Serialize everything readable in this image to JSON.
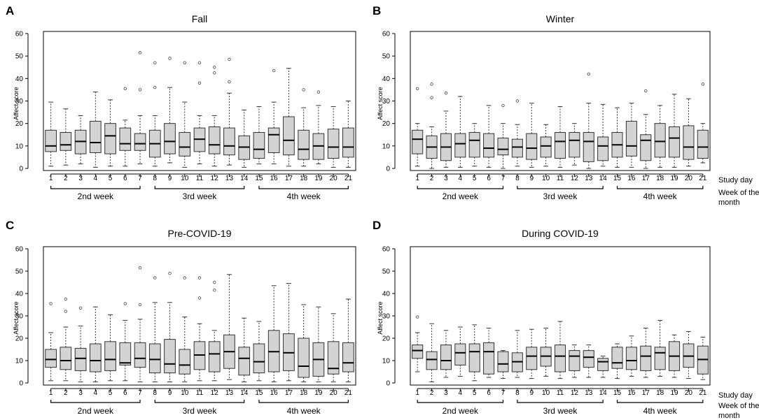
{
  "labels": {
    "study_day": "Study day",
    "week_of_month_line1": "Week of the",
    "week_of_month_line2": "month"
  },
  "panel_letters": [
    "A",
    "B",
    "C",
    "D"
  ],
  "chart_data": [
    {
      "type": "boxplot",
      "panel": "A",
      "title": "Fall",
      "ylabel": "Affect score",
      "ylim": [
        0,
        60
      ],
      "yticks": [
        0,
        10,
        20,
        30,
        40,
        50,
        60
      ],
      "categories": [
        "1",
        "2",
        "3",
        "4",
        "5",
        "6",
        "7",
        "8",
        "9",
        "10",
        "11",
        "12",
        "13",
        "14",
        "15",
        "16",
        "17",
        "18",
        "19",
        "20",
        "21"
      ],
      "week_groups": [
        {
          "label": "2nd week",
          "from": 1,
          "to": 7
        },
        {
          "label": "3rd week",
          "from": 8,
          "to": 14
        },
        {
          "label": "4th week",
          "from": 15,
          "to": 21
        }
      ],
      "boxes": [
        {
          "day": "1",
          "wlo": 1,
          "q1": 7.5,
          "med": 10,
          "q3": 17,
          "whi": 29.5,
          "out": []
        },
        {
          "day": "2",
          "wlo": 1.5,
          "q1": 8,
          "med": 10.5,
          "q3": 16,
          "whi": 26.5,
          "out": []
        },
        {
          "day": "3",
          "wlo": 2,
          "q1": 6.5,
          "med": 12,
          "q3": 17,
          "whi": 23.5,
          "out": []
        },
        {
          "day": "4",
          "wlo": 0.5,
          "q1": 7,
          "med": 11.5,
          "q3": 21,
          "whi": 34,
          "out": []
        },
        {
          "day": "5",
          "wlo": 1,
          "q1": 6.5,
          "med": 14.5,
          "q3": 20,
          "whi": 30.5,
          "out": []
        },
        {
          "day": "6",
          "wlo": 1,
          "q1": 8,
          "med": 11,
          "q3": 18,
          "whi": 21.5,
          "out": [
            35.5
          ]
        },
        {
          "day": "7",
          "wlo": 2,
          "q1": 8,
          "med": 11,
          "q3": 15.5,
          "whi": 23.5,
          "out": [
            35,
            51.5
          ]
        },
        {
          "day": "8",
          "wlo": 1,
          "q1": 5,
          "med": 11,
          "q3": 17,
          "whi": 23.5,
          "out": [
            36,
            47
          ]
        },
        {
          "day": "9",
          "wlo": 2.5,
          "q1": 6.5,
          "med": 12,
          "q3": 20,
          "whi": 36,
          "out": [
            49
          ]
        },
        {
          "day": "10",
          "wlo": 0.5,
          "q1": 5.5,
          "med": 9.5,
          "q3": 16,
          "whi": 29.5,
          "out": [
            47
          ]
        },
        {
          "day": "11",
          "wlo": 2,
          "q1": 7.5,
          "med": 13,
          "q3": 18,
          "whi": 23.5,
          "out": [
            38,
            47
          ]
        },
        {
          "day": "12",
          "wlo": 1,
          "q1": 6.5,
          "med": 10.5,
          "q3": 18.5,
          "whi": 23.5,
          "out": [
            42.5,
            45
          ]
        },
        {
          "day": "13",
          "wlo": 1.5,
          "q1": 6,
          "med": 10,
          "q3": 18,
          "whi": 33.5,
          "out": [
            38.5,
            48.5
          ]
        },
        {
          "day": "14",
          "wlo": 0.5,
          "q1": 4,
          "med": 9.5,
          "q3": 14.5,
          "whi": 26,
          "out": []
        },
        {
          "day": "15",
          "wlo": 2,
          "q1": 4.5,
          "med": 8.5,
          "q3": 16,
          "whi": 27.5,
          "out": []
        },
        {
          "day": "16",
          "wlo": 2,
          "q1": 7,
          "med": 15,
          "q3": 18,
          "whi": 29.5,
          "out": [
            43.5
          ]
        },
        {
          "day": "17",
          "wlo": 1,
          "q1": 6,
          "med": 12.5,
          "q3": 23,
          "whi": 44.5,
          "out": []
        },
        {
          "day": "18",
          "wlo": 1,
          "q1": 4,
          "med": 8.5,
          "q3": 17,
          "whi": 27,
          "out": [
            35
          ]
        },
        {
          "day": "19",
          "wlo": 2,
          "q1": 4,
          "med": 10,
          "q3": 15.5,
          "whi": 28,
          "out": [
            34
          ]
        },
        {
          "day": "20",
          "wlo": 0.5,
          "q1": 4.5,
          "med": 9.5,
          "q3": 17.5,
          "whi": 27.5,
          "out": []
        },
        {
          "day": "21",
          "wlo": 0.5,
          "q1": 5,
          "med": 9.5,
          "q3": 18,
          "whi": 30,
          "out": []
        }
      ]
    },
    {
      "type": "boxplot",
      "panel": "B",
      "title": "Winter",
      "ylabel": "Affect score",
      "ylim": [
        0,
        60
      ],
      "yticks": [
        0,
        10,
        20,
        30,
        40,
        50,
        60
      ],
      "categories": [
        "1",
        "2",
        "3",
        "4",
        "5",
        "6",
        "7",
        "8",
        "9",
        "10",
        "11",
        "12",
        "13",
        "14",
        "15",
        "16",
        "17",
        "18",
        "19",
        "20",
        "21"
      ],
      "week_groups": [
        {
          "label": "2nd week",
          "from": 1,
          "to": 7
        },
        {
          "label": "3rd week",
          "from": 8,
          "to": 14
        },
        {
          "label": "4th week",
          "from": 15,
          "to": 21
        }
      ],
      "boxes": [
        {
          "day": "1",
          "wlo": 1,
          "q1": 6.5,
          "med": 13,
          "q3": 17,
          "whi": 20,
          "out": [
            35.5
          ]
        },
        {
          "day": "2",
          "wlo": 0,
          "q1": 4.5,
          "med": 9.5,
          "q3": 14.5,
          "whi": 18.5,
          "out": [
            31.5,
            37.5
          ]
        },
        {
          "day": "3",
          "wlo": 0.5,
          "q1": 3.5,
          "med": 9.5,
          "q3": 15.5,
          "whi": 25.5,
          "out": [
            33.5
          ]
        },
        {
          "day": "4",
          "wlo": 0.5,
          "q1": 5,
          "med": 11,
          "q3": 15.5,
          "whi": 32,
          "out": []
        },
        {
          "day": "5",
          "wlo": 1,
          "q1": 5,
          "med": 12.5,
          "q3": 16,
          "whi": 20,
          "out": []
        },
        {
          "day": "6",
          "wlo": 0.5,
          "q1": 5,
          "med": 9,
          "q3": 15.5,
          "whi": 28,
          "out": []
        },
        {
          "day": "7",
          "wlo": 0,
          "q1": 6,
          "med": 8.5,
          "q3": 13.5,
          "whi": 20,
          "out": [
            28
          ]
        },
        {
          "day": "8",
          "wlo": 1,
          "q1": 5,
          "med": 9.5,
          "q3": 13,
          "whi": 19.5,
          "out": [
            30
          ]
        },
        {
          "day": "9",
          "wlo": 0.5,
          "q1": 4,
          "med": 9,
          "q3": 15.5,
          "whi": 29,
          "out": []
        },
        {
          "day": "10",
          "wlo": 1,
          "q1": 5,
          "med": 10,
          "q3": 14,
          "whi": 19.5,
          "out": []
        },
        {
          "day": "11",
          "wlo": 0.5,
          "q1": 4.5,
          "med": 12,
          "q3": 16,
          "whi": 27.5,
          "out": []
        },
        {
          "day": "12",
          "wlo": 1.5,
          "q1": 5,
          "med": 12.5,
          "q3": 16,
          "whi": 20,
          "out": []
        },
        {
          "day": "13",
          "wlo": 0,
          "q1": 3,
          "med": 12,
          "q3": 16,
          "whi": 29,
          "out": [
            42
          ]
        },
        {
          "day": "14",
          "wlo": 1,
          "q1": 3.5,
          "med": 10,
          "q3": 14,
          "whi": 28.5,
          "out": []
        },
        {
          "day": "15",
          "wlo": 0.5,
          "q1": 5,
          "med": 10.5,
          "q3": 16,
          "whi": 27,
          "out": []
        },
        {
          "day": "16",
          "wlo": 0.5,
          "q1": 5.5,
          "med": 10,
          "q3": 21,
          "whi": 29,
          "out": []
        },
        {
          "day": "17",
          "wlo": 0,
          "q1": 3.5,
          "med": 12.5,
          "q3": 15,
          "whi": 24,
          "out": [
            34.5
          ]
        },
        {
          "day": "18",
          "wlo": 0.5,
          "q1": 5,
          "med": 12,
          "q3": 20,
          "whi": 28,
          "out": []
        },
        {
          "day": "19",
          "wlo": 0.5,
          "q1": 5,
          "med": 13.5,
          "q3": 18.5,
          "whi": 33,
          "out": []
        },
        {
          "day": "20",
          "wlo": 1,
          "q1": 4,
          "med": 9.5,
          "q3": 19,
          "whi": 31,
          "out": []
        },
        {
          "day": "21",
          "wlo": 2.5,
          "q1": 4.5,
          "med": 9.5,
          "q3": 17,
          "whi": 20,
          "out": [
            37.5
          ]
        }
      ]
    },
    {
      "type": "boxplot",
      "panel": "C",
      "title": "Pre-COVID-19",
      "ylabel": "Affect score",
      "ylim": [
        0,
        60
      ],
      "yticks": [
        0,
        10,
        20,
        30,
        40,
        50,
        60
      ],
      "categories": [
        "1",
        "2",
        "3",
        "4",
        "5",
        "6",
        "7",
        "8",
        "9",
        "10",
        "11",
        "12",
        "13",
        "14",
        "15",
        "16",
        "17",
        "18",
        "19",
        "20",
        "21"
      ],
      "week_groups": [
        {
          "label": "2nd week",
          "from": 1,
          "to": 7
        },
        {
          "label": "3rd week",
          "from": 8,
          "to": 14
        },
        {
          "label": "4th week",
          "from": 15,
          "to": 21
        }
      ],
      "boxes": [
        {
          "day": "1",
          "wlo": 1,
          "q1": 7,
          "med": 10.5,
          "q3": 15,
          "whi": 22.5,
          "out": [
            35.5
          ]
        },
        {
          "day": "2",
          "wlo": 1,
          "q1": 6,
          "med": 10,
          "q3": 16,
          "whi": 25,
          "out": [
            32,
            37.5
          ]
        },
        {
          "day": "3",
          "wlo": 0.5,
          "q1": 5.5,
          "med": 11,
          "q3": 15.5,
          "whi": 25.5,
          "out": [
            33.5
          ]
        },
        {
          "day": "4",
          "wlo": 0.5,
          "q1": 5,
          "med": 10,
          "q3": 17.5,
          "whi": 34,
          "out": []
        },
        {
          "day": "5",
          "wlo": 1,
          "q1": 5.5,
          "med": 10.5,
          "q3": 18.5,
          "whi": 30.5,
          "out": []
        },
        {
          "day": "6",
          "wlo": 1,
          "q1": 8,
          "med": 9,
          "q3": 18,
          "whi": 28,
          "out": [
            35.5
          ]
        },
        {
          "day": "7",
          "wlo": 0.5,
          "q1": 7,
          "med": 11,
          "q3": 18,
          "whi": 28.5,
          "out": [
            35,
            51.5
          ]
        },
        {
          "day": "8",
          "wlo": 0.5,
          "q1": 4.5,
          "med": 10.5,
          "q3": 17.5,
          "whi": 36,
          "out": [
            47
          ]
        },
        {
          "day": "9",
          "wlo": 0.5,
          "q1": 4.5,
          "med": 8.5,
          "q3": 19.5,
          "whi": 36,
          "out": [
            49
          ]
        },
        {
          "day": "10",
          "wlo": 0.5,
          "q1": 4,
          "med": 8,
          "q3": 15,
          "whi": 29.5,
          "out": [
            47
          ]
        },
        {
          "day": "11",
          "wlo": 1,
          "q1": 6,
          "med": 12.5,
          "q3": 18.5,
          "whi": 26.5,
          "out": [
            38,
            47
          ]
        },
        {
          "day": "12",
          "wlo": 1,
          "q1": 5,
          "med": 13,
          "q3": 18.5,
          "whi": 23.5,
          "out": [
            41.5,
            45
          ]
        },
        {
          "day": "13",
          "wlo": 1.5,
          "q1": 6.5,
          "med": 14,
          "q3": 21.5,
          "whi": 48.5,
          "out": []
        },
        {
          "day": "14",
          "wlo": 0.5,
          "q1": 3.5,
          "med": 11,
          "q3": 16,
          "whi": 29,
          "out": []
        },
        {
          "day": "15",
          "wlo": 1,
          "q1": 4.5,
          "med": 9.5,
          "q3": 17.5,
          "whi": 27.5,
          "out": []
        },
        {
          "day": "16",
          "wlo": 0.5,
          "q1": 5,
          "med": 14,
          "q3": 23.5,
          "whi": 43.5,
          "out": []
        },
        {
          "day": "17",
          "wlo": 1,
          "q1": 5.5,
          "med": 13.5,
          "q3": 22,
          "whi": 44.5,
          "out": []
        },
        {
          "day": "18",
          "wlo": 0.5,
          "q1": 2.5,
          "med": 7.5,
          "q3": 20,
          "whi": 35,
          "out": []
        },
        {
          "day": "19",
          "wlo": 0.5,
          "q1": 3,
          "med": 10.5,
          "q3": 18,
          "whi": 34,
          "out": []
        },
        {
          "day": "20",
          "wlo": 0.5,
          "q1": 4,
          "med": 6.5,
          "q3": 18.5,
          "whi": 31,
          "out": []
        },
        {
          "day": "21",
          "wlo": 0.5,
          "q1": 5,
          "med": 9,
          "q3": 18,
          "whi": 37.5,
          "out": []
        }
      ]
    },
    {
      "type": "boxplot",
      "panel": "D",
      "title": "During COVID-19",
      "ylabel": "Affect score",
      "ylim": [
        0,
        60
      ],
      "yticks": [
        0,
        10,
        20,
        30,
        40,
        50,
        60
      ],
      "categories": [
        "1",
        "2",
        "3",
        "4",
        "5",
        "6",
        "7",
        "8",
        "9",
        "10",
        "11",
        "12",
        "13",
        "14",
        "15",
        "16",
        "17",
        "18",
        "19",
        "20",
        "21"
      ],
      "week_groups": [
        {
          "label": "2nd week",
          "from": 1,
          "to": 7
        },
        {
          "label": "3rd week",
          "from": 8,
          "to": 14
        },
        {
          "label": "4th week",
          "from": 15,
          "to": 21
        }
      ],
      "boxes": [
        {
          "day": "1",
          "wlo": 5,
          "q1": 11,
          "med": 14.5,
          "q3": 17,
          "whi": 22.5,
          "out": [
            29.5
          ]
        },
        {
          "day": "2",
          "wlo": 0.5,
          "q1": 6,
          "med": 10.5,
          "q3": 14,
          "whi": 26.5,
          "out": []
        },
        {
          "day": "3",
          "wlo": 2.5,
          "q1": 6,
          "med": 10,
          "q3": 17,
          "whi": 23.5,
          "out": []
        },
        {
          "day": "4",
          "wlo": 3,
          "q1": 8,
          "med": 13.5,
          "q3": 17.5,
          "whi": 25,
          "out": []
        },
        {
          "day": "5",
          "wlo": 1,
          "q1": 5,
          "med": 14,
          "q3": 17.5,
          "whi": 26,
          "out": []
        },
        {
          "day": "6",
          "wlo": 2.5,
          "q1": 4,
          "med": 14,
          "q3": 18,
          "whi": 24.5,
          "out": []
        },
        {
          "day": "7",
          "wlo": 2,
          "q1": 5,
          "med": 8.5,
          "q3": 14,
          "whi": 14.5,
          "out": []
        },
        {
          "day": "8",
          "wlo": 2.5,
          "q1": 5,
          "med": 9.5,
          "q3": 13.5,
          "whi": 23.5,
          "out": []
        },
        {
          "day": "9",
          "wlo": 2,
          "q1": 6,
          "med": 12,
          "q3": 16,
          "whi": 24,
          "out": []
        },
        {
          "day": "10",
          "wlo": 3,
          "q1": 7.5,
          "med": 12,
          "q3": 16,
          "whi": 24.5,
          "out": []
        },
        {
          "day": "11",
          "wlo": 2,
          "q1": 5,
          "med": 12,
          "q3": 17,
          "whi": 27.5,
          "out": []
        },
        {
          "day": "12",
          "wlo": 2.5,
          "q1": 5.5,
          "med": 12,
          "q3": 14.5,
          "whi": 17,
          "out": []
        },
        {
          "day": "13",
          "wlo": 2.5,
          "q1": 7,
          "med": 11.5,
          "q3": 14.5,
          "whi": 17,
          "out": []
        },
        {
          "day": "14",
          "wlo": 2.5,
          "q1": 5.5,
          "med": 9.5,
          "q3": 11,
          "whi": 12,
          "out": []
        },
        {
          "day": "15",
          "wlo": 2,
          "q1": 6.5,
          "med": 9,
          "q3": 16,
          "whi": 17.5,
          "out": []
        },
        {
          "day": "16",
          "wlo": 3,
          "q1": 6,
          "med": 10,
          "q3": 16,
          "whi": 21,
          "out": []
        },
        {
          "day": "17",
          "wlo": 2.5,
          "q1": 5.5,
          "med": 12,
          "q3": 16.5,
          "whi": 24.5,
          "out": []
        },
        {
          "day": "18",
          "wlo": 3,
          "q1": 6,
          "med": 13.5,
          "q3": 16,
          "whi": 28,
          "out": []
        },
        {
          "day": "19",
          "wlo": 2.5,
          "q1": 5.5,
          "med": 12,
          "q3": 18.5,
          "whi": 21.5,
          "out": []
        },
        {
          "day": "20",
          "wlo": 2,
          "q1": 7,
          "med": 12,
          "q3": 17.5,
          "whi": 23,
          "out": []
        },
        {
          "day": "21",
          "wlo": 1.5,
          "q1": 4,
          "med": 10.5,
          "q3": 16.5,
          "whi": 20.5,
          "out": []
        }
      ]
    }
  ]
}
